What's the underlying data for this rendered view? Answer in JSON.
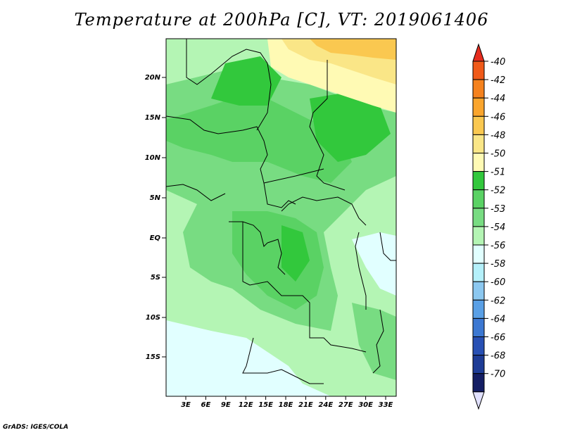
{
  "title": "Temperature at 200hPa [C], VT: 2019061406",
  "footer": "GrADS: IGES/COLA",
  "map": {
    "lat_labels": [
      "20N",
      "15N",
      "10N",
      "5N",
      "EQ",
      "5S",
      "10S",
      "15S"
    ],
    "lon_labels": [
      "3E",
      "6E",
      "9E",
      "12E",
      "15E",
      "18E",
      "21E",
      "24E",
      "27E",
      "30E",
      "33E"
    ]
  },
  "legend": {
    "labels": [
      "-40",
      "-42",
      "-44",
      "-46",
      "-48",
      "-50",
      "-51",
      "-52",
      "-53",
      "-54",
      "-56",
      "-58",
      "-60",
      "-62",
      "-64",
      "-66",
      "-68",
      "-70"
    ],
    "colors": [
      "#e62d1e",
      "#f05a19",
      "#f5821e",
      "#faa52d",
      "#fac850",
      "#fae687",
      "#fffab4",
      "#32c83c",
      "#5ad264",
      "#78dc82",
      "#b4f5b4",
      "#e1ffff",
      "#b4f0fa",
      "#8cc8f0",
      "#5aa0e6",
      "#3c78d2",
      "#2850b4",
      "#1e3c96",
      "#141e64"
    ],
    "top_arrow_color": "#e62d1e",
    "bottom_arrow_color": "#e1e1ff"
  },
  "field_colors": {
    "c_minus50": "#fae687",
    "c_minus48": "#fac850",
    "c_minus51": "#fffab4",
    "c_minus52": "#32c83c",
    "c_minus53": "#5ad264",
    "c_minus54a": "#78dc82",
    "c_minus54b": "#b4f5b4",
    "c_minus56": "#e1ffff"
  }
}
